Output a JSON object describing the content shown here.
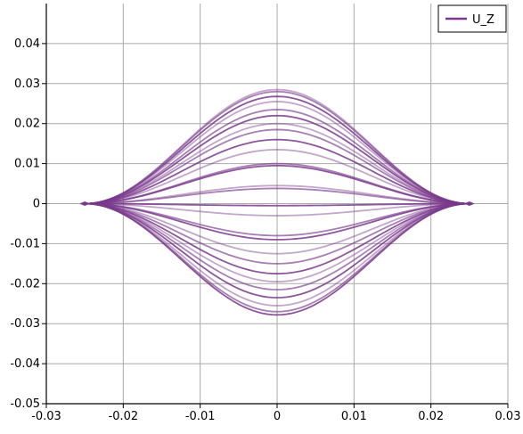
{
  "chart_data": {
    "type": "line",
    "xlim": [
      -0.03,
      0.03
    ],
    "ylim": [
      -0.05,
      0.05
    ],
    "x_ticks": [
      -0.03,
      -0.02,
      -0.01,
      0,
      0.01,
      0.02,
      0.03
    ],
    "x_tick_labels": [
      "-0.03",
      "-0.02",
      "-0.01",
      "0",
      "0.01",
      "0.02",
      "0.03"
    ],
    "y_ticks": [
      0.04,
      0.03,
      0.02,
      0.01,
      0,
      -0.01,
      -0.02,
      -0.03,
      -0.04,
      -0.05
    ],
    "y_tick_labels": [
      "0.04",
      "0.03",
      "0.02",
      "0.01",
      "0",
      "-0.01",
      "-0.02",
      "-0.03",
      "-0.04",
      "-0.05"
    ],
    "grid": true,
    "legend": {
      "placement": "top-right",
      "entries": [
        "U_Z"
      ]
    },
    "series_color": "#7a3a8c",
    "curve_shape": "smooth bell between endpoints x=-0.025 and x=0.025, value 0 at both ends",
    "x_endpoints": [
      -0.025,
      0.025
    ],
    "series": [
      {
        "peak": 0.0285
      },
      {
        "peak": 0.028
      },
      {
        "peak": 0.0268
      },
      {
        "peak": 0.0255
      },
      {
        "peak": 0.0235
      },
      {
        "peak": 0.022
      },
      {
        "peak": 0.02
      },
      {
        "peak": 0.0185
      },
      {
        "peak": 0.016
      },
      {
        "peak": 0.0135
      },
      {
        "peak": 0.01
      },
      {
        "peak": 0.0095
      },
      {
        "peak": 0.0045
      },
      {
        "peak": 0.0038
      },
      {
        "peak": -0.0005
      },
      {
        "peak": -0.003
      },
      {
        "peak": -0.008
      },
      {
        "peak": -0.009
      },
      {
        "peak": -0.0125
      },
      {
        "peak": -0.015
      },
      {
        "peak": -0.0175
      },
      {
        "peak": -0.0195
      },
      {
        "peak": -0.0215
      },
      {
        "peak": -0.0235
      },
      {
        "peak": -0.0255
      },
      {
        "peak": -0.027
      },
      {
        "peak": -0.0278
      }
    ]
  }
}
